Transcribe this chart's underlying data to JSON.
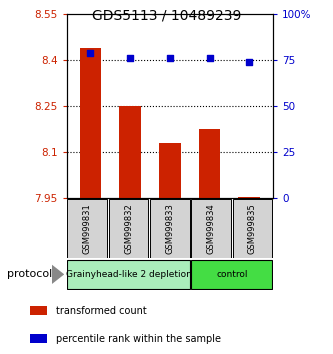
{
  "title": "GDS5113 / 10489239",
  "samples": [
    "GSM999831",
    "GSM999832",
    "GSM999833",
    "GSM999834",
    "GSM999835"
  ],
  "bar_values": [
    8.44,
    8.25,
    8.13,
    8.175,
    7.955
  ],
  "bar_bottom": 7.95,
  "percentile_values": [
    79,
    76,
    76,
    76,
    74
  ],
  "ylim_left": [
    7.95,
    8.55
  ],
  "ylim_right": [
    0,
    100
  ],
  "yticks_left": [
    7.95,
    8.1,
    8.25,
    8.4,
    8.55
  ],
  "yticks_right": [
    0,
    25,
    50,
    75,
    100
  ],
  "ytick_labels_right": [
    "0",
    "25",
    "50",
    "75",
    "100%"
  ],
  "bar_color": "#cc2200",
  "dot_color": "#0000cc",
  "groups": [
    {
      "label": "Grainyhead-like 2 depletion",
      "color": "#aaeebb",
      "samples": [
        0,
        1,
        2
      ]
    },
    {
      "label": "control",
      "color": "#44dd44",
      "samples": [
        3,
        4
      ]
    }
  ],
  "protocol_label": "protocol",
  "legend_items": [
    {
      "color": "#cc2200",
      "label": "transformed count"
    },
    {
      "color": "#0000cc",
      "label": "percentile rank within the sample"
    }
  ]
}
